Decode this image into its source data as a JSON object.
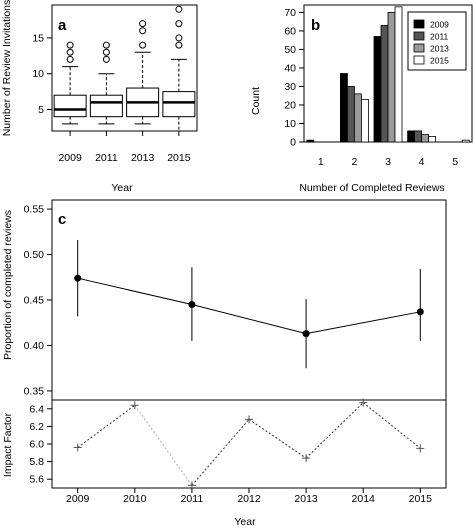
{
  "chart_data": [
    {
      "panel": "a",
      "type": "boxplot",
      "xlabel": "Year",
      "ylabel": "Number of Review Invitations",
      "categories": [
        "2009",
        "2011",
        "2013",
        "2015"
      ],
      "yticks": [
        5,
        10,
        15
      ],
      "ylim": [
        2,
        19.6
      ],
      "boxes": [
        {
          "min": 3,
          "q1": 4,
          "median": 5,
          "q3": 7,
          "max": 11,
          "outliers": [
            12,
            13,
            14
          ]
        },
        {
          "min": 3,
          "q1": 4,
          "median": 6,
          "q3": 7,
          "max": 10,
          "outliers": [
            12,
            13,
            14
          ]
        },
        {
          "min": 3,
          "q1": 4,
          "median": 6,
          "q3": 8,
          "max": 13,
          "outliers": [
            14,
            16,
            17
          ]
        },
        {
          "min": 2,
          "q1": 4,
          "median": 6,
          "q3": 7.5,
          "max": 12,
          "outliers": [
            14,
            15,
            17,
            19
          ]
        }
      ]
    },
    {
      "panel": "b",
      "type": "bar",
      "xlabel": "Number of Completed Reviews",
      "ylabel": "Count",
      "categories": [
        "1",
        "2",
        "3",
        "4",
        "5"
      ],
      "yticks": [
        0,
        10,
        20,
        30,
        40,
        50,
        60,
        70
      ],
      "ylim": [
        0,
        74
      ],
      "legend_position": "top-right",
      "series": [
        {
          "name": "2009",
          "color": "#000000",
          "values": [
            1,
            37,
            57,
            6,
            0
          ]
        },
        {
          "name": "2011",
          "color": "#555555",
          "values": [
            0,
            30,
            63,
            6,
            0
          ]
        },
        {
          "name": "2013",
          "color": "#9a9a9a",
          "values": [
            0,
            26,
            70,
            4,
            0
          ]
        },
        {
          "name": "2015",
          "color": "#ffffff",
          "values": [
            0,
            23,
            73,
            3,
            1
          ]
        }
      ]
    },
    {
      "panel": "c",
      "type": "line",
      "xlabel": "Year",
      "ylabel": "Proportion of completed reviews",
      "x": [
        2009,
        2011,
        2013,
        2015
      ],
      "y": [
        0.474,
        0.445,
        0.413,
        0.437
      ],
      "err_low": [
        0.432,
        0.405,
        0.375,
        0.405
      ],
      "err_high": [
        0.516,
        0.486,
        0.451,
        0.484
      ],
      "yticks": [
        "0.35",
        "0.40",
        "0.45",
        "0.50",
        "0.55"
      ],
      "ylim": [
        0.34,
        0.56
      ]
    },
    {
      "panel": "c-lower",
      "type": "line",
      "xlabel": "Year",
      "ylabel": "Impact Factor",
      "x": [
        2009,
        2010,
        2011,
        2012,
        2013,
        2014,
        2015
      ],
      "y": [
        5.96,
        6.44,
        5.53,
        6.28,
        5.84,
        6.47,
        5.95
      ],
      "xticks": [
        "2009",
        "2010",
        "2011",
        "2012",
        "2013",
        "2014",
        "2015"
      ],
      "yticks": [
        "5.6",
        "5.8",
        "6.0",
        "6.2",
        "6.4"
      ],
      "ylim": [
        5.5,
        6.5
      ]
    }
  ]
}
